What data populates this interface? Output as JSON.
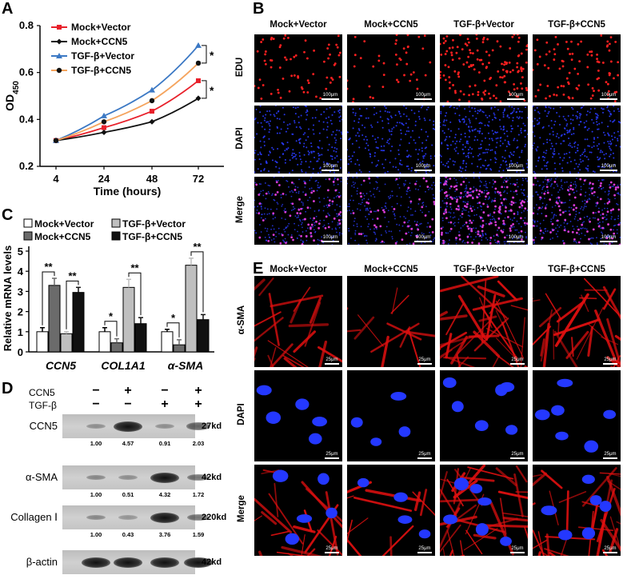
{
  "panel_letters": {
    "a": "A",
    "b": "B",
    "c": "C",
    "d": "D",
    "e": "E"
  },
  "chart_data": [
    {
      "type": "line",
      "x": [
        4,
        24,
        48,
        72
      ],
      "xlabel": "Time (hours)",
      "ylabel": "OD",
      "ylabel_subscript": "450",
      "ylim": [
        0.2,
        0.8
      ],
      "yticks": [
        "0.2",
        "0.4",
        "0.6",
        "0.8"
      ],
      "xticks": [
        "4",
        "24",
        "48",
        "72"
      ],
      "legend_position": "top-left",
      "series": [
        {
          "name": "Mock+Vector",
          "color": "#e8202a",
          "marker": "square",
          "values": [
            0.31,
            0.365,
            0.435,
            0.565
          ]
        },
        {
          "name": "Mock+CCN5",
          "color": "#111111",
          "marker": "diamond",
          "values": [
            0.31,
            0.345,
            0.39,
            0.49
          ]
        },
        {
          "name": "TGF-β+Vector",
          "color": "#3b78c4",
          "marker": "triangle",
          "values": [
            0.31,
            0.415,
            0.525,
            0.715
          ]
        },
        {
          "name": "TGF-β+CCN5",
          "color": "#f5a45e",
          "line_color": "#f5a45e",
          "marker_color": "#111111",
          "marker": "circle",
          "values": [
            0.31,
            0.39,
            0.48,
            0.64
          ]
        }
      ],
      "annotations": [
        "*",
        "*"
      ]
    },
    {
      "type": "bar",
      "ylabel": "Relative mRNA levels",
      "ylim": [
        0,
        5
      ],
      "yticks": [
        "0",
        "1",
        "2",
        "3",
        "4",
        "5"
      ],
      "categories": [
        "CCN5",
        "COL1A1",
        "α-SMA"
      ],
      "legend_position": "top",
      "series": [
        {
          "name": "Mock+Vector",
          "color": "#ffffff",
          "values": [
            1.0,
            1.0,
            1.0
          ],
          "errors": [
            0.2,
            0.2,
            0.12
          ]
        },
        {
          "name": "Mock+CCN5",
          "color": "#6b6b6b",
          "values": [
            3.3,
            0.45,
            0.35
          ],
          "errors": [
            0.35,
            0.2,
            0.25
          ]
        },
        {
          "name": "TGF-β+Vector",
          "color": "#bfbfbf",
          "values": [
            0.9,
            3.2,
            4.3
          ],
          "errors": [
            0.1,
            0.4,
            0.35
          ]
        },
        {
          "name": "TGF-β+CCN5",
          "color": "#111111",
          "values": [
            2.95,
            1.4,
            1.6
          ],
          "errors": [
            0.25,
            0.3,
            0.25
          ]
        }
      ],
      "significance": [
        "**",
        "**",
        "*",
        "**",
        "*",
        "**"
      ]
    }
  ],
  "panel_b": {
    "columns": [
      "Mock+Vector",
      "Mock+CCN5",
      "TGF-β+Vector",
      "TGF-β+CCN5"
    ],
    "rows": [
      "EDU",
      "DAPI",
      "Merge"
    ],
    "scale_bar": "100μm"
  },
  "panel_d": {
    "condition_labels": [
      "CCN5",
      "TGF-β"
    ],
    "signs_ccn5": [
      "−",
      "+",
      "−",
      "+"
    ],
    "signs_tgf": [
      "−",
      "−",
      "+",
      "+"
    ],
    "blots": [
      {
        "label": "CCN5",
        "kd": "27kd",
        "quant": [
          "1.00",
          "4.57",
          "0.91",
          "2.03"
        ]
      },
      {
        "label": "α-SMA",
        "kd": "42kd",
        "quant": [
          "1.00",
          "0.51",
          "4.32",
          "1.72"
        ]
      },
      {
        "label": "Collagen Ⅰ",
        "kd": "220kd",
        "quant": [
          "1.00",
          "0.43",
          "3.76",
          "1.59"
        ]
      },
      {
        "label": "β-actin",
        "kd": "42kd",
        "quant": []
      }
    ],
    "band_levels": [
      [
        0.15,
        1.0,
        0.15,
        0.55
      ],
      [
        0.2,
        0.15,
        1.0,
        0.45
      ],
      [
        0.2,
        0.1,
        1.0,
        0.45
      ],
      [
        1.0,
        1.0,
        1.0,
        1.0
      ]
    ]
  },
  "panel_e": {
    "columns": [
      "Mock+Vector",
      "Mock+CCN5",
      "TGF-β+Vector",
      "TGF-β+CCN5"
    ],
    "rows": [
      "α-SMA",
      "DAPI",
      "Merge"
    ],
    "scale_bar": "25μm"
  },
  "colors": {
    "edu": "#ff2020",
    "dapi": "#2a3cff",
    "merge": "#d63cd6",
    "asma": "#e01010"
  }
}
